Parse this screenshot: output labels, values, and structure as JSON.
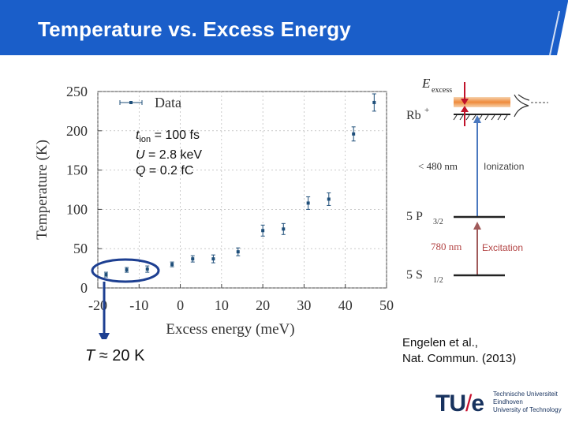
{
  "slide": {
    "title": "Temperature vs. Excess Energy",
    "params": {
      "t_symbol": "t",
      "t_sub": "ion",
      "t_value": " = 100 fs",
      "u_symbol": "U",
      "u_value": " = 2.8 keV",
      "q_symbol": "Q",
      "q_value": " = 0.2 fC"
    },
    "temp_note": {
      "symbol": "T",
      "value": " ≈ 20 K"
    },
    "citation": {
      "line1": "Engelen et al.,",
      "line2": "Nat. Commun. (2013)"
    },
    "logo": {
      "mark_left": "TU",
      "mark_slash": "/",
      "mark_right": "e",
      "line1": "Technische Universiteit",
      "line2": "Eindhoven",
      "line3": "University of Technology"
    }
  },
  "energy_diagram": {
    "e_excess_symbol": "E",
    "e_excess_sub": "excess",
    "ion_label": "Rb",
    "ion_sup": "+",
    "ionization_wavelength": "< 480 nm",
    "ionization_label": "Ionization",
    "p_state": "5 P",
    "p_sub": "3/2",
    "excitation_wavelength": "780 nm",
    "excitation_label": "Excitation",
    "s_state": "5 S",
    "s_sub": "1/2"
  },
  "chart_data": {
    "type": "scatter",
    "xlabel": "Excess energy (meV)",
    "ylabel": "Temperature (K)",
    "xlim": [
      -20,
      50
    ],
    "ylim": [
      0,
      250
    ],
    "x_ticks": [
      "-20",
      "-10",
      "0",
      "10",
      "20",
      "30",
      "40",
      "50"
    ],
    "y_ticks": [
      "0",
      "50",
      "100",
      "150",
      "200",
      "250"
    ],
    "grid": "on",
    "legend": "top-left",
    "series": [
      {
        "name": "Data",
        "x": [
          -18,
          -13,
          -8,
          -2,
          3,
          8,
          14,
          20,
          25,
          31,
          36,
          42,
          47
        ],
        "y": [
          17,
          23,
          24,
          30,
          37,
          37,
          46,
          73,
          75,
          108,
          113,
          196,
          236
        ],
        "err": [
          3,
          3,
          4,
          3,
          4,
          5,
          5,
          7,
          7,
          8,
          8,
          9,
          11
        ]
      }
    ],
    "color": "#1f4f7a"
  }
}
